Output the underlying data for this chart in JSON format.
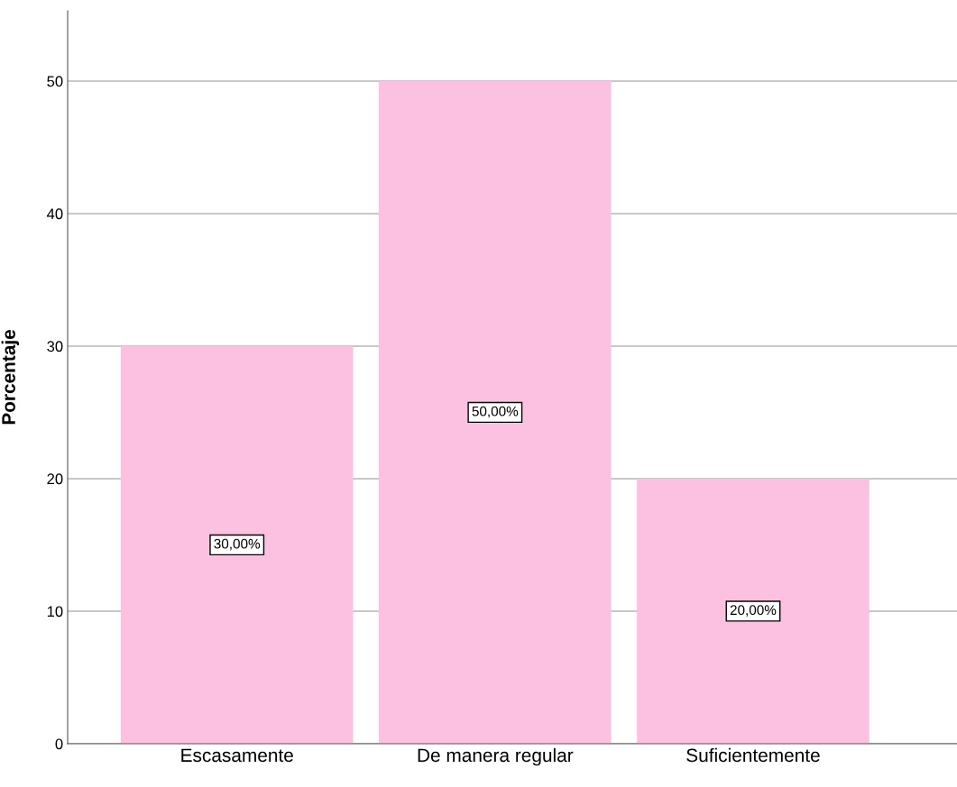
{
  "chart_data": {
    "type": "bar",
    "ylabel": "Porcentaje",
    "categories": [
      "Escasamente",
      "De manera regular",
      "Suficientemente"
    ],
    "values": [
      30,
      50,
      20
    ],
    "color": "#fcc0e0",
    "value_labels": [
      "30,00%",
      "50,00%",
      "20,00%"
    ],
    "ylim": [
      0,
      55.3
    ],
    "yticks": [
      0,
      10,
      20,
      30,
      40,
      50
    ],
    "grid": "y"
  }
}
